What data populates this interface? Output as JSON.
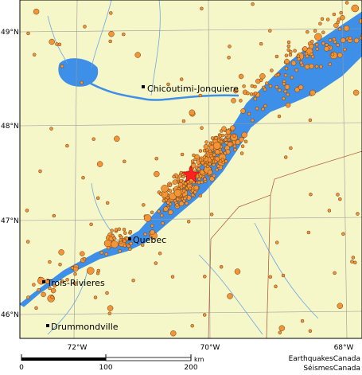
{
  "map": {
    "lat_labels": [
      "49°N",
      "48°N",
      "47°N",
      "46°N"
    ],
    "lon_labels": [
      "72°W",
      "70°W",
      "68°W"
    ],
    "cities": [
      "Chicoutimi-Jonquiere",
      "Quebec",
      "Trois-Rivieres",
      "Drummondville"
    ],
    "scale": {
      "labels": [
        "0",
        "100",
        "200"
      ],
      "unit": "km"
    },
    "credits": [
      "EarthquakesCanada",
      "SéismesCanada"
    ]
  }
}
